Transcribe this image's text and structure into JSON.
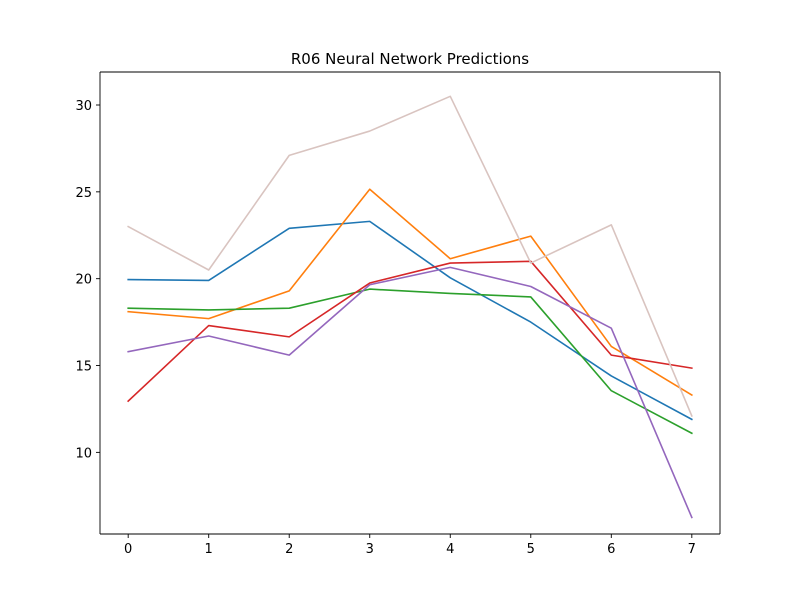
{
  "chart_data": {
    "type": "line",
    "title": "R06 Neural Network Predictions",
    "xlabel": "",
    "ylabel": "",
    "x": [
      0,
      1,
      2,
      3,
      4,
      5,
      6,
      7
    ],
    "xlim": [
      -0.35,
      7.35
    ],
    "ylim": [
      5.3,
      31.9
    ],
    "xticks": [
      0,
      1,
      2,
      3,
      4,
      5,
      6,
      7
    ],
    "yticks": [
      10,
      15,
      20,
      25,
      30
    ],
    "grid": false,
    "series": [
      {
        "color": "#1f77b4",
        "values": [
          19.95,
          19.9,
          22.9,
          23.3,
          20.05,
          17.5,
          14.4,
          11.9
        ]
      },
      {
        "color": "#ff7f0e",
        "values": [
          18.1,
          17.7,
          19.3,
          25.15,
          21.15,
          22.45,
          16.1,
          13.3
        ]
      },
      {
        "color": "#2ca02c",
        "values": [
          18.3,
          18.2,
          18.3,
          19.4,
          19.15,
          18.95,
          13.55,
          11.1
        ]
      },
      {
        "color": "#d62728",
        "values": [
          12.95,
          17.3,
          16.65,
          19.75,
          20.9,
          21.0,
          15.6,
          14.85
        ]
      },
      {
        "color": "#9467bd",
        "values": [
          15.8,
          16.7,
          15.6,
          19.65,
          20.65,
          19.55,
          17.15,
          6.25
        ]
      },
      {
        "color": "#d9c4c0",
        "values": [
          23.0,
          20.5,
          27.1,
          28.5,
          30.5,
          20.9,
          23.1,
          12.1
        ]
      }
    ]
  }
}
